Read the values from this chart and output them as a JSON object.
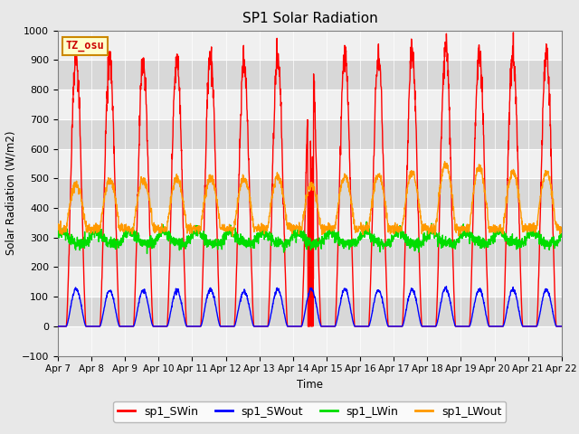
{
  "title": "SP1 Solar Radiation",
  "xlabel": "Time",
  "ylabel": "Solar Radiation (W/m2)",
  "ylim": [
    -100,
    1000
  ],
  "xlim": [
    0,
    15
  ],
  "tz_label": "TZ_osu",
  "outer_bg": "#e8e8e8",
  "plot_bg": "#e8e8e8",
  "band_light": "#f0f0f0",
  "band_dark": "#d8d8d8",
  "colors": {
    "SWin": "#ff0000",
    "SWout": "#0000ff",
    "LWin": "#00dd00",
    "LWout": "#ff9900"
  },
  "legend_labels": [
    "sp1_SWin",
    "sp1_SWout",
    "sp1_LWin",
    "sp1_LWout"
  ],
  "xtick_labels": [
    "Apr 7",
    "Apr 8",
    "Apr 9",
    "Apr 10",
    "Apr 11",
    "Apr 12",
    "Apr 13",
    "Apr 14",
    "Apr 15",
    "Apr 16",
    "Apr 17",
    "Apr 18",
    "Apr 19",
    "Apr 20",
    "Apr 21",
    "Apr 22"
  ],
  "xtick_positions": [
    0,
    1,
    2,
    3,
    4,
    5,
    6,
    7,
    8,
    9,
    10,
    11,
    12,
    13,
    14,
    15
  ],
  "n_days": 15,
  "pts_per_day": 144,
  "SWin_peaks": [
    950,
    930,
    925,
    925,
    960,
    925,
    940,
    970,
    945,
    940,
    955,
    985,
    960,
    960,
    955
  ],
  "SWout_peaks": [
    130,
    125,
    125,
    125,
    128,
    122,
    128,
    130,
    128,
    125,
    128,
    132,
    128,
    128,
    128
  ],
  "LWin_base": 295,
  "LWout_base": 330,
  "LWout_day_peaks": [
    480,
    490,
    495,
    500,
    505,
    500,
    505,
    475,
    505,
    510,
    520,
    545,
    535,
    520,
    520
  ],
  "special_day": 7,
  "special_SWin_peak": 700
}
